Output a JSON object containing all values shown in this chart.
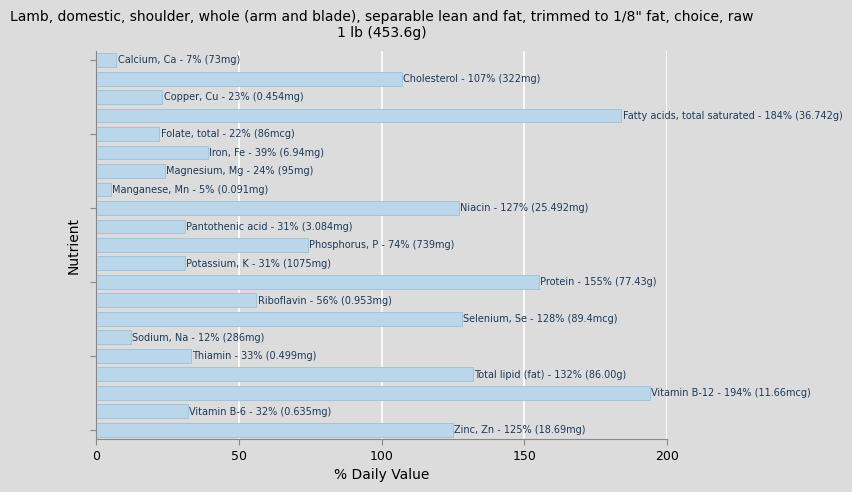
{
  "title": "Lamb, domestic, shoulder, whole (arm and blade), separable lean and fat, trimmed to 1/8\" fat, choice, raw\n1 lb (453.6g)",
  "xlabel": "% Daily Value",
  "ylabel": "Nutrient",
  "xlim": [
    0,
    200
  ],
  "xticks": [
    0,
    50,
    100,
    150,
    200
  ],
  "background_color": "#dcdcdc",
  "plot_bg_color": "#dcdcdc",
  "bar_color": "#bad6eb",
  "bar_edge_color": "#93bcd4",
  "text_color": "#1a3a5c",
  "nutrients": [
    {
      "label": "Calcium, Ca - 7% (73mg)",
      "value": 7
    },
    {
      "label": "Cholesterol - 107% (322mg)",
      "value": 107
    },
    {
      "label": "Copper, Cu - 23% (0.454mg)",
      "value": 23
    },
    {
      "label": "Fatty acids, total saturated - 184% (36.742g)",
      "value": 184
    },
    {
      "label": "Folate, total - 22% (86mcg)",
      "value": 22
    },
    {
      "label": "Iron, Fe - 39% (6.94mg)",
      "value": 39
    },
    {
      "label": "Magnesium, Mg - 24% (95mg)",
      "value": 24
    },
    {
      "label": "Manganese, Mn - 5% (0.091mg)",
      "value": 5
    },
    {
      "label": "Niacin - 127% (25.492mg)",
      "value": 127
    },
    {
      "label": "Pantothenic acid - 31% (3.084mg)",
      "value": 31
    },
    {
      "label": "Phosphorus, P - 74% (739mg)",
      "value": 74
    },
    {
      "label": "Potassium, K - 31% (1075mg)",
      "value": 31
    },
    {
      "label": "Protein - 155% (77.43g)",
      "value": 155
    },
    {
      "label": "Riboflavin - 56% (0.953mg)",
      "value": 56
    },
    {
      "label": "Selenium, Se - 128% (89.4mcg)",
      "value": 128
    },
    {
      "label": "Sodium, Na - 12% (286mg)",
      "value": 12
    },
    {
      "label": "Thiamin - 33% (0.499mg)",
      "value": 33
    },
    {
      "label": "Total lipid (fat) - 132% (86.00g)",
      "value": 132
    },
    {
      "label": "Vitamin B-12 - 194% (11.66mcg)",
      "value": 194
    },
    {
      "label": "Vitamin B-6 - 32% (0.635mg)",
      "value": 32
    },
    {
      "label": "Zinc, Zn - 125% (18.69mg)",
      "value": 125
    }
  ]
}
